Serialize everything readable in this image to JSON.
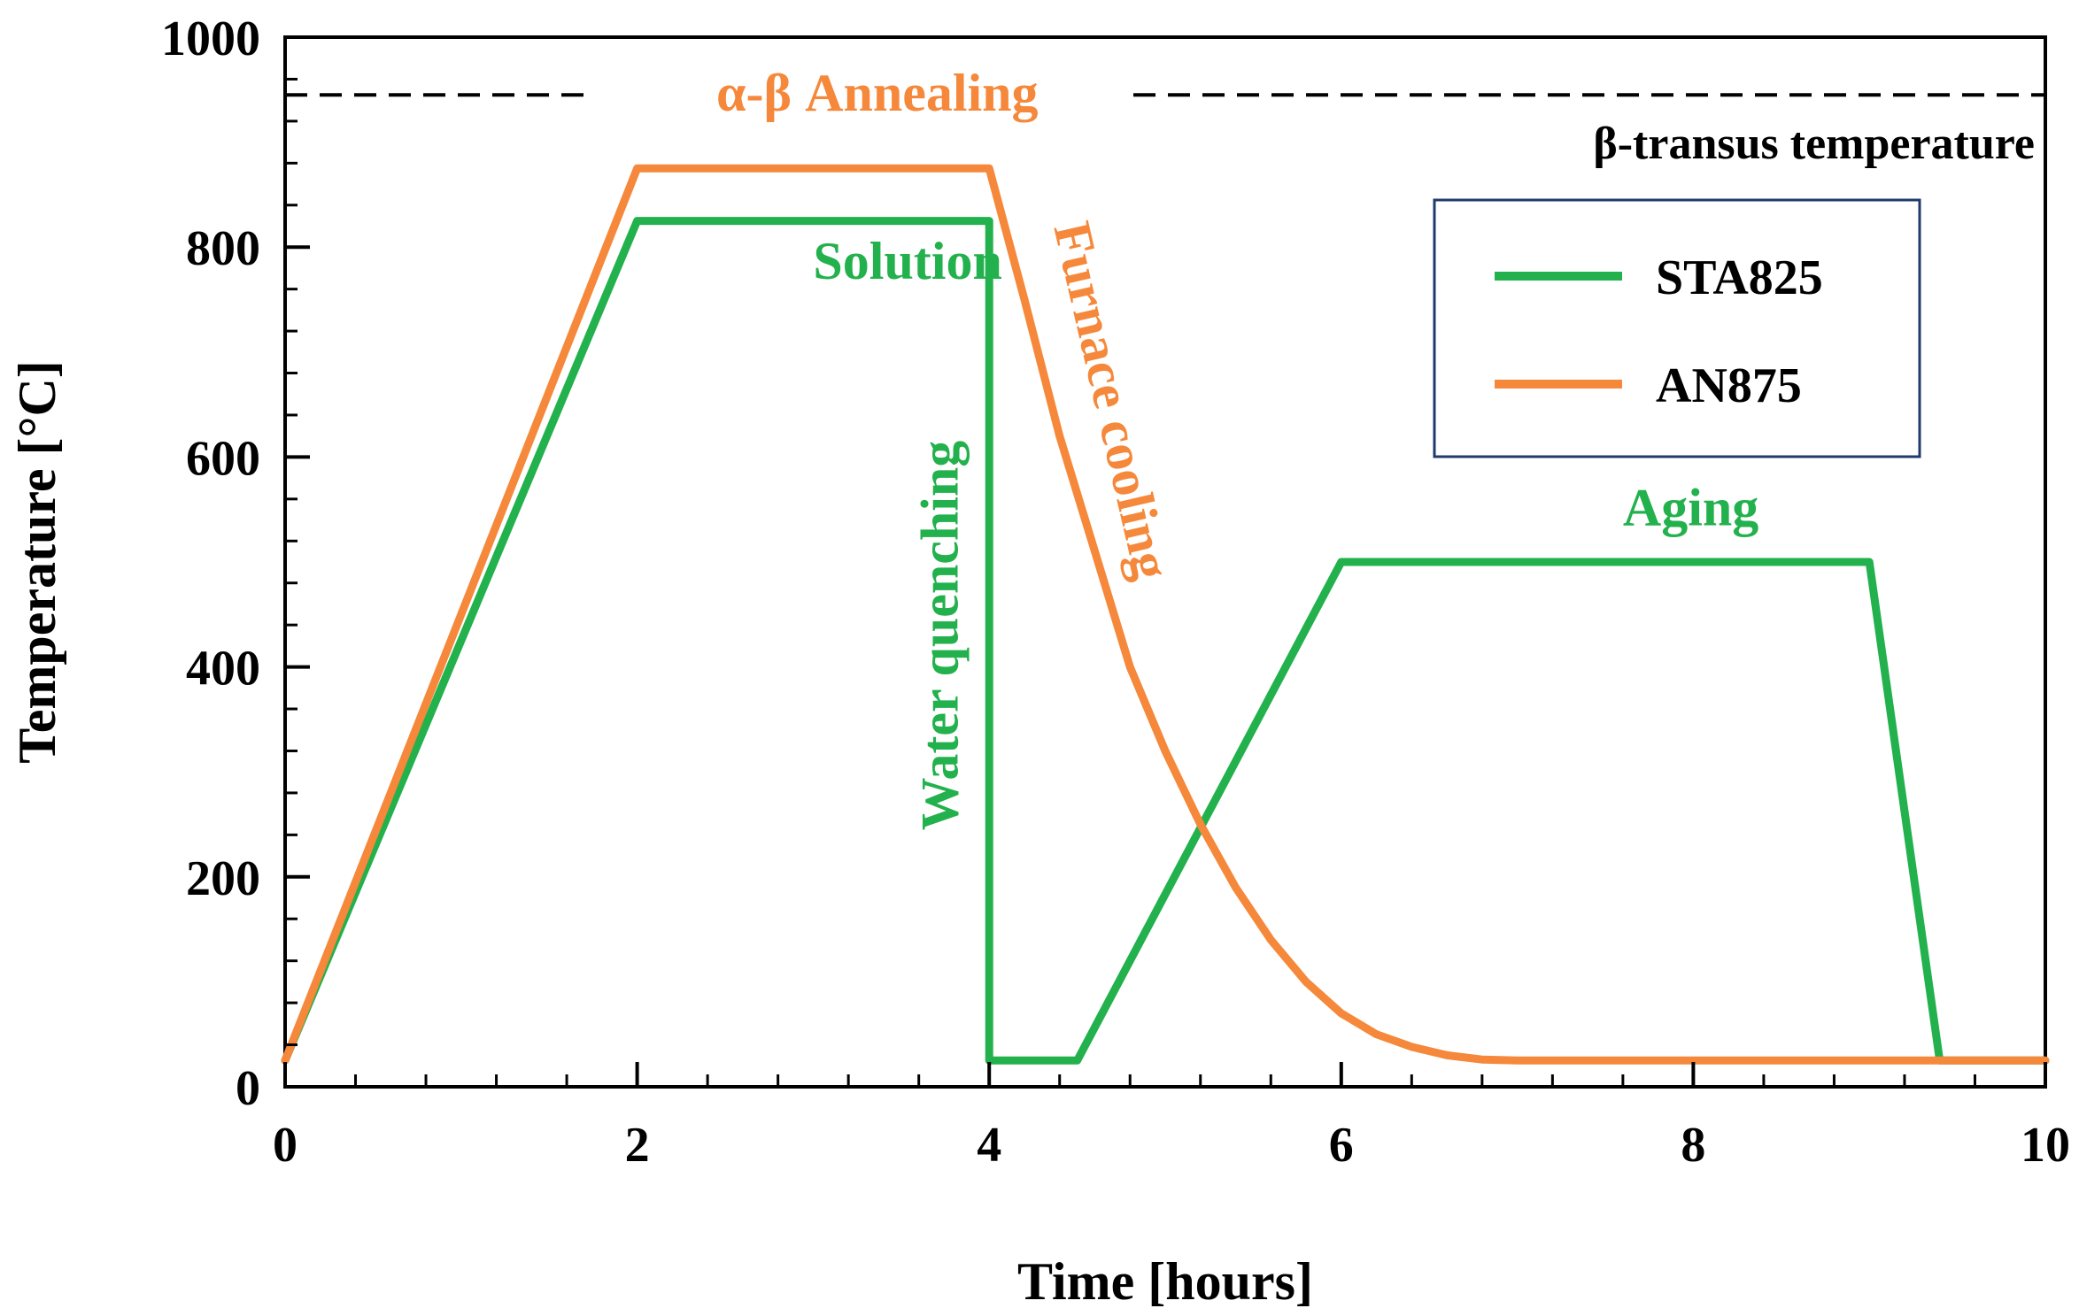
{
  "chart_data": {
    "type": "line",
    "title": "",
    "xlabel": "Time [hours]",
    "ylabel": "Temperature [°C]",
    "xlim": [
      0,
      10
    ],
    "ylim": [
      0,
      1000
    ],
    "xticks": [
      0,
      2,
      4,
      6,
      8,
      10
    ],
    "yticks": [
      0,
      200,
      400,
      600,
      800,
      1000
    ],
    "xtick_labels": [
      "0",
      "2",
      "4",
      "6",
      "8",
      "10"
    ],
    "ytick_labels": [
      "0",
      "200",
      "400",
      "600",
      "800",
      "1000"
    ],
    "x_minor_step": 0.4,
    "y_minor_step": 40,
    "grid": false,
    "legend_position": "top-right",
    "reference_line": {
      "label": "β-transus temperature",
      "y": 945,
      "style": "dashed",
      "color": "#000000"
    },
    "series": [
      {
        "name": "STA825",
        "color": "#22b14c",
        "x": [
          0,
          2,
          4,
          4,
          4.5,
          6,
          9,
          9.4,
          10
        ],
        "y": [
          25,
          825,
          825,
          25,
          25,
          500,
          500,
          25,
          25
        ]
      },
      {
        "name": "AN875",
        "color": "#f5883a",
        "x": [
          0,
          2,
          4,
          4.2,
          4.4,
          4.6,
          4.8,
          5.0,
          5.2,
          5.4,
          5.6,
          5.8,
          6.0,
          6.2,
          6.4,
          6.6,
          6.8,
          7.0,
          8.0,
          10.0
        ],
        "y": [
          25,
          875,
          875,
          750,
          620,
          510,
          400,
          320,
          250,
          190,
          140,
          100,
          70,
          50,
          38,
          30,
          26,
          25,
          25,
          25
        ]
      }
    ],
    "annotations": [
      {
        "text": "α-β Annealing",
        "x": 2.45,
        "y": 930,
        "color": "#f5883a",
        "rotation": 0
      },
      {
        "text": "Solution",
        "x": 3.0,
        "y": 770,
        "color": "#22b14c",
        "rotation": 0
      },
      {
        "text": "Water quenching",
        "x": 3.82,
        "y": 430,
        "color": "#22b14c",
        "rotation": -90
      },
      {
        "text": "Furnace cooling",
        "x": 4.6,
        "y": 650,
        "color": "#f5883a",
        "rotation": 77
      },
      {
        "text": "Aging",
        "x": 7.6,
        "y": 535,
        "color": "#22b14c",
        "rotation": 0
      }
    ]
  }
}
